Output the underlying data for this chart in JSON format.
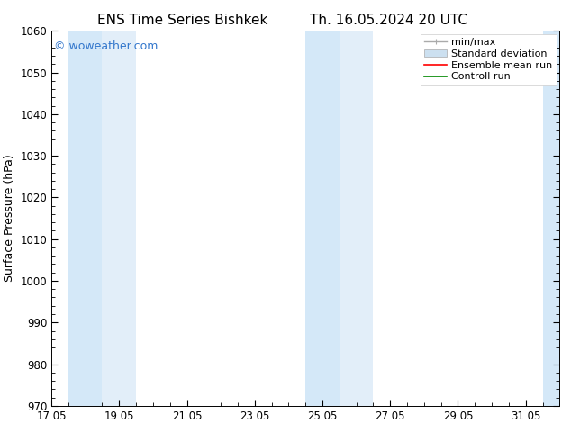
{
  "title_left": "ENS Time Series Bishkek",
  "title_right": "Th. 16.05.2024 20 UTC",
  "ylabel": "Surface Pressure (hPa)",
  "ylim": [
    970,
    1060
  ],
  "yticks": [
    970,
    980,
    990,
    1000,
    1010,
    1020,
    1030,
    1040,
    1050,
    1060
  ],
  "xlim_start": 0.0,
  "xlim_end": 15.0,
  "xtick_labels": [
    "17.05",
    "19.05",
    "21.05",
    "23.05",
    "25.05",
    "27.05",
    "29.05",
    "31.05"
  ],
  "xtick_positions": [
    0.0,
    2.0,
    4.0,
    6.0,
    8.0,
    10.0,
    12.0,
    14.0
  ],
  "shaded_bands": [
    {
      "x_start": 0.5,
      "x_end": 1.5,
      "color": "#d4e8f8"
    },
    {
      "x_start": 1.5,
      "x_end": 2.5,
      "color": "#e2eef9"
    },
    {
      "x_start": 7.5,
      "x_end": 8.5,
      "color": "#d4e8f8"
    },
    {
      "x_start": 8.5,
      "x_end": 9.5,
      "color": "#e2eef9"
    },
    {
      "x_start": 14.5,
      "x_end": 15.0,
      "color": "#d4e8f8"
    }
  ],
  "legend_labels": [
    "min/max",
    "Standard deviation",
    "Ensemble mean run",
    "Controll run"
  ],
  "legend_colors_line": [
    "#aaaaaa",
    "#bbccdd",
    "#ff0000",
    "#008800"
  ],
  "watermark_text": "© woweather.com",
  "watermark_color": "#3377cc",
  "bg_color": "#ffffff",
  "plot_bg_color": "#ffffff",
  "title_fontsize": 11,
  "axis_label_fontsize": 9,
  "tick_fontsize": 8.5,
  "legend_fontsize": 8
}
